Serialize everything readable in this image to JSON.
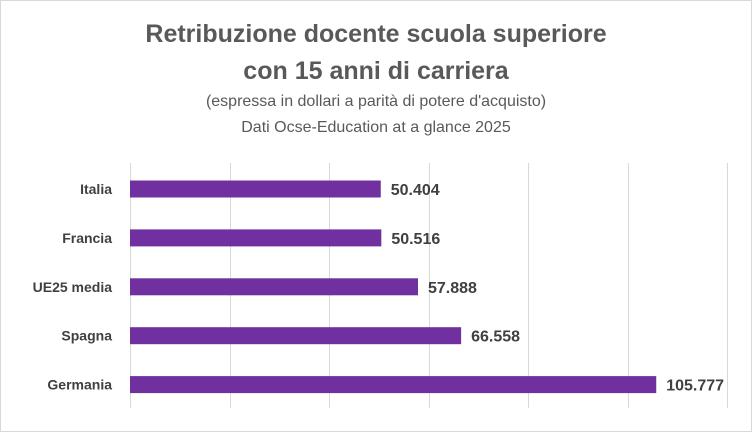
{
  "title": {
    "line1": "Retribuzione docente scuola superiore",
    "line2": "con 15 anni di carriera"
  },
  "subtitle": {
    "line1": "(espressa in dollari a parità di potere d'acquisto)",
    "line2": "Dati Ocse-Education at a glance 2025"
  },
  "colors": {
    "bar": "#7030a0",
    "gridline": "#d9d9d9",
    "text": "#404040",
    "title": "#595959"
  },
  "chart_data": {
    "type": "bar",
    "orientation": "horizontal",
    "title": "Retribuzione docente scuola superiore con 15 anni di carriera",
    "subtitle": "(espressa in dollari a parità di potere d'acquisto) Dati Ocse-Education at a glance 2025",
    "xlabel": "",
    "ylabel": "",
    "categories": [
      "Italia",
      "Francia",
      "UE25 media",
      "Spagna",
      "Germania"
    ],
    "values": [
      50404,
      50516,
      57888,
      66558,
      105777
    ],
    "data_labels": [
      "50.404",
      "50.516",
      "57.888",
      "66.558",
      "105.777"
    ],
    "xlim": [
      0,
      120000
    ],
    "grid": true,
    "tick_labels_shown": false,
    "legend": "none"
  }
}
